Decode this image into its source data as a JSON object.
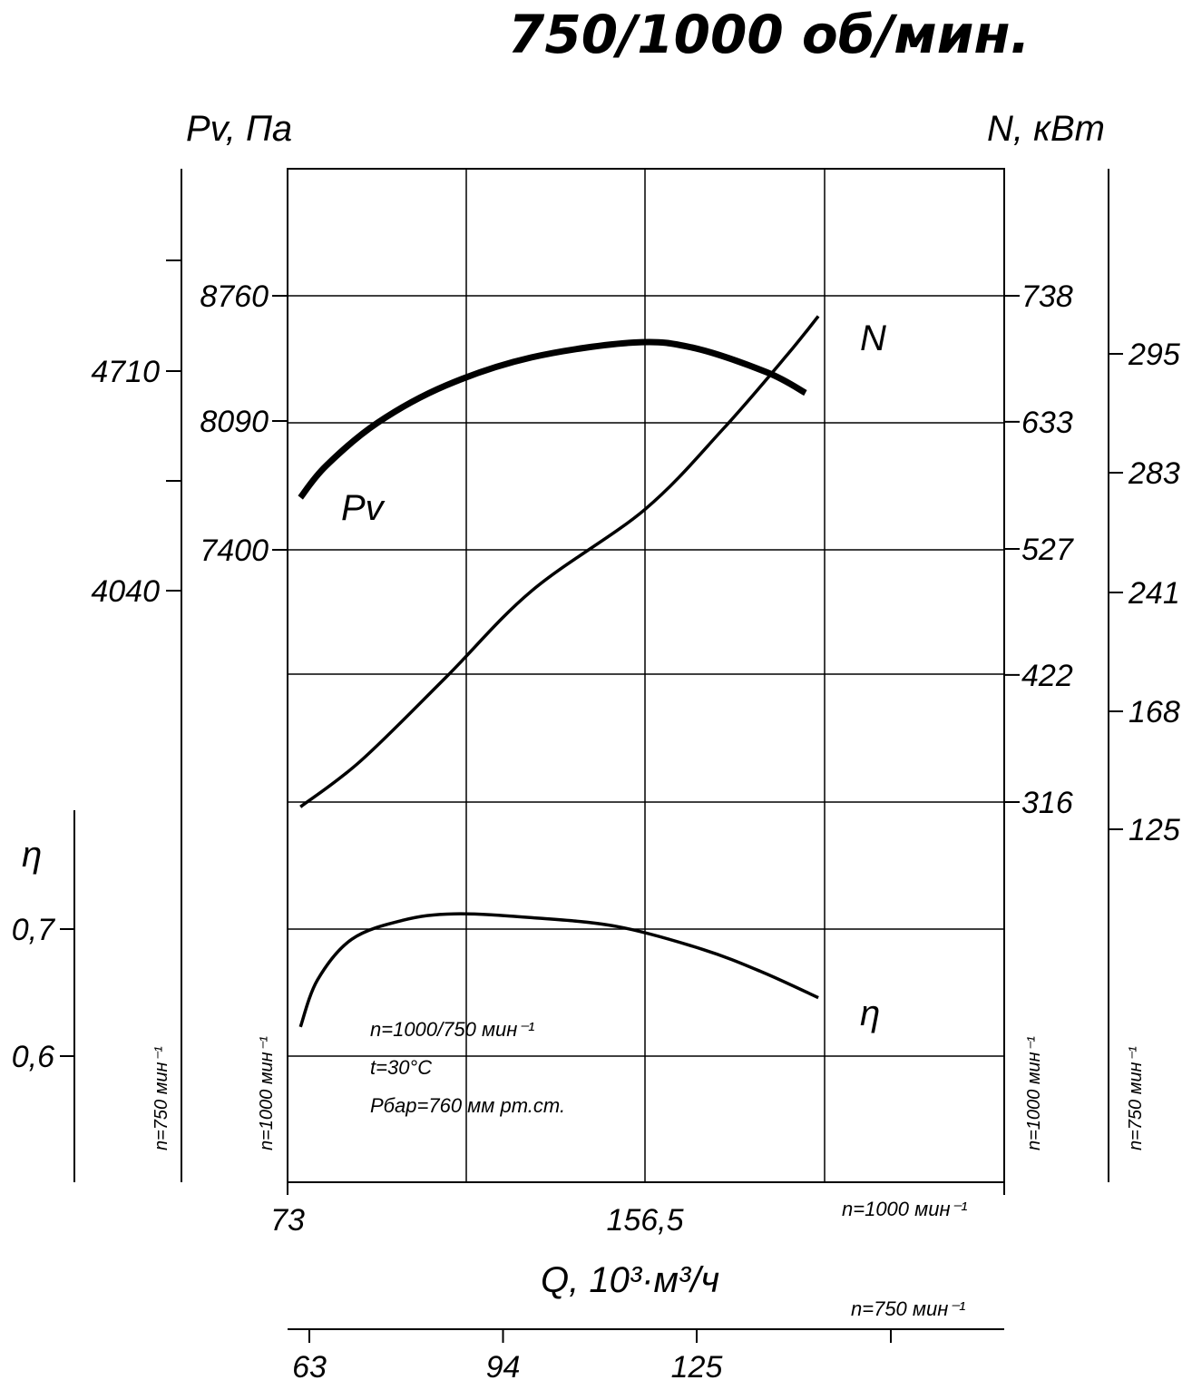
{
  "title": "750/1000 об/мин.",
  "chart_data": {
    "type": "line",
    "x_axis_1000": {
      "label": "Q, 10³·м³/ч",
      "speed_label": "n=1000 мин⁻¹",
      "ticks": [
        {
          "value": 73,
          "label": "73"
        },
        {
          "value": 156.5,
          "label": "156,5"
        }
      ]
    },
    "x_axis_750": {
      "speed_label": "n=750 мин⁻¹",
      "ticks": [
        {
          "value": 63,
          "label": "63"
        },
        {
          "value": 94,
          "label": "94"
        },
        {
          "value": 125,
          "label": "125"
        }
      ]
    },
    "pv_axis_1000": {
      "unit": "Pv, Па",
      "speed_label": "n=1000 мин⁻¹",
      "ticks": [
        {
          "value": 8760,
          "label": "8760"
        },
        {
          "value": 8090,
          "label": "8090"
        },
        {
          "value": 7400,
          "label": "7400"
        }
      ]
    },
    "pv_axis_750": {
      "speed_label": "n=750 мин⁻¹",
      "ticks": [
        {
          "value": 4710,
          "label": "4710"
        },
        {
          "value": 4040,
          "label": "4040"
        }
      ]
    },
    "eta_axis": {
      "unit": "η",
      "ticks": [
        {
          "value": 0.7,
          "label": "0,7"
        },
        {
          "value": 0.6,
          "label": "0,6"
        }
      ]
    },
    "n_axis_1000": {
      "unit": "N, кВт",
      "speed_label": "n=1000 мин⁻¹",
      "ticks": [
        {
          "value": 738,
          "label": "738"
        },
        {
          "value": 633,
          "label": "633"
        },
        {
          "value": 527,
          "label": "527"
        },
        {
          "value": 422,
          "label": "422"
        },
        {
          "value": 316,
          "label": "316"
        }
      ]
    },
    "n_axis_750": {
      "speed_label": "n=750 мин⁻¹",
      "ticks": [
        {
          "value": 295,
          "label": "295"
        },
        {
          "value": 283,
          "label": "283"
        },
        {
          "value": 241,
          "label": "241"
        },
        {
          "value": 168,
          "label": "168"
        },
        {
          "value": 125,
          "label": "125"
        }
      ]
    },
    "series": [
      {
        "name": "Pv",
        "axis": "pv_axis_1000",
        "points": [
          [
            76,
            7680
          ],
          [
            82,
            7850
          ],
          [
            94,
            8080
          ],
          [
            110,
            8280
          ],
          [
            130,
            8430
          ],
          [
            154,
            8510
          ],
          [
            168,
            8480
          ],
          [
            185,
            8350
          ],
          [
            194,
            8240
          ]
        ]
      },
      {
        "name": "N",
        "axis": "n_axis_1000",
        "points": [
          [
            76,
            312
          ],
          [
            90,
            350
          ],
          [
            110,
            420
          ],
          [
            130,
            492
          ],
          [
            156.5,
            560
          ],
          [
            175,
            628
          ],
          [
            190,
            690
          ],
          [
            197,
            721
          ]
        ]
      },
      {
        "name": "η",
        "axis": "eta_axis",
        "points": [
          [
            76,
            0.623
          ],
          [
            80,
            0.66
          ],
          [
            88,
            0.692
          ],
          [
            100,
            0.707
          ],
          [
            112,
            0.712
          ],
          [
            130,
            0.709
          ],
          [
            150,
            0.702
          ],
          [
            170,
            0.684
          ],
          [
            184,
            0.666
          ],
          [
            197,
            0.646
          ]
        ]
      }
    ],
    "annotations": [
      "n=1000/750 мин⁻¹",
      "t=30°C",
      "Pбар=760 мм рт.ст."
    ]
  }
}
